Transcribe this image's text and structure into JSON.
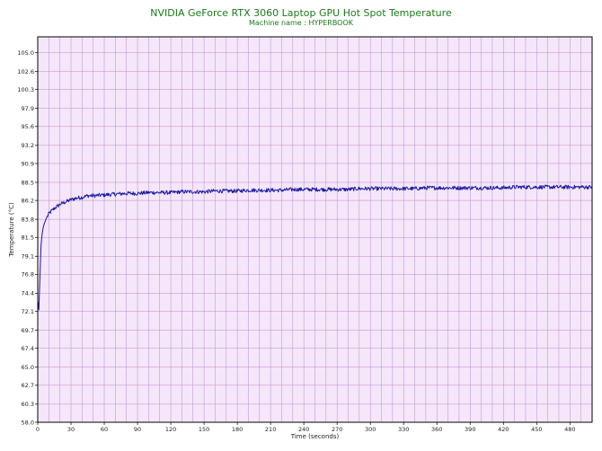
{
  "chart_data": {
    "type": "line",
    "title": "NVIDIA GeForce RTX 3060 Laptop GPU Hot Spot Temperature",
    "subtitle": "Machine name : HYPERBOOK",
    "xlabel": "Time (seconds)",
    "ylabel": "Temperature (°C)",
    "xlim": [
      0,
      500
    ],
    "ylim": [
      58.0,
      107.0
    ],
    "x_ticks": [
      0,
      30,
      60,
      90,
      120,
      150,
      180,
      210,
      240,
      270,
      300,
      330,
      360,
      390,
      420,
      450,
      480
    ],
    "x_tick_labels": [
      "0",
      "30",
      "60",
      "90",
      "120",
      "150",
      "180",
      "210",
      "240",
      "270",
      "300",
      "330",
      "360",
      "390",
      "420",
      "450",
      "480"
    ],
    "y_ticks": [
      58.0,
      60.3,
      62.7,
      65.0,
      67.4,
      69.7,
      72.1,
      74.4,
      76.8,
      79.1,
      81.5,
      83.8,
      86.2,
      88.5,
      90.9,
      93.2,
      95.6,
      97.9,
      100.3,
      102.6,
      105.0
    ],
    "y_tick_labels": [
      "58.0",
      "60.3",
      "62.7",
      "65.0",
      "67.4",
      "69.7",
      "72.1",
      "74.4",
      "76.8",
      "79.1",
      "81.5",
      "83.8",
      "86.2",
      "88.5",
      "90.9",
      "93.2",
      "95.6",
      "97.9",
      "100.3",
      "102.6",
      "105.0"
    ],
    "grid": true,
    "series": [
      {
        "color": "#1a1aa0",
        "x": [
          0,
          1,
          2,
          3,
          4,
          5,
          6,
          8,
          10,
          12,
          15,
          18,
          20,
          25,
          30,
          35,
          40,
          45,
          50,
          60,
          70,
          80,
          90,
          100,
          110,
          120,
          130,
          140,
          150,
          160,
          170,
          180,
          190,
          200,
          210,
          220,
          230,
          240,
          250,
          260,
          270,
          280,
          290,
          300,
          310,
          320,
          330,
          340,
          350,
          360,
          370,
          380,
          390,
          400,
          410,
          420,
          430,
          440,
          450,
          460,
          470,
          480,
          490,
          500
        ],
        "y": [
          73.5,
          72.3,
          76.5,
          80.5,
          82.0,
          82.8,
          83.3,
          84.0,
          84.5,
          84.8,
          85.2,
          85.5,
          85.7,
          86.0,
          86.3,
          86.5,
          86.6,
          86.8,
          86.8,
          86.9,
          87.0,
          87.1,
          87.1,
          87.2,
          87.2,
          87.2,
          87.3,
          87.3,
          87.3,
          87.4,
          87.4,
          87.4,
          87.5,
          87.5,
          87.5,
          87.5,
          87.6,
          87.6,
          87.6,
          87.6,
          87.6,
          87.6,
          87.7,
          87.7,
          87.7,
          87.7,
          87.7,
          87.7,
          87.8,
          87.8,
          87.8,
          87.8,
          87.8,
          87.8,
          87.8,
          87.8,
          87.9,
          87.9,
          87.9,
          87.9,
          87.9,
          87.9,
          87.9,
          87.9
        ]
      }
    ]
  }
}
